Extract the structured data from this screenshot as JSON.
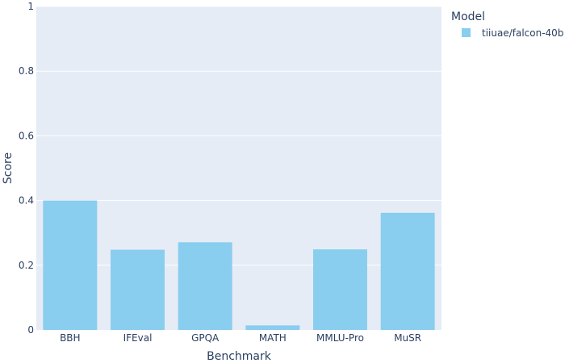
{
  "chart_data": {
    "type": "bar",
    "categories": [
      "BBH",
      "IFEval",
      "GPQA",
      "MATH",
      "MMLU-Pro",
      "MuSR"
    ],
    "series": [
      {
        "name": "tiiuae/falcon-40b",
        "values": [
          0.4,
          0.248,
          0.271,
          0.014,
          0.249,
          0.362
        ]
      }
    ],
    "xlabel": "Benchmark",
    "ylabel": "Score",
    "ylim": [
      0,
      1
    ],
    "yticks": [
      0,
      0.2,
      0.4,
      0.6,
      0.8,
      1
    ],
    "ytick_labels": [
      "0",
      "0.2",
      "0.4",
      "0.6",
      "0.8",
      "1"
    ],
    "grid": true,
    "legend": {
      "title": "Model",
      "placement": "top-right"
    },
    "colors": {
      "bar": "#89cdef",
      "plot_bg": "#e5ecf6",
      "grid": "#ffffff",
      "text": "#2a3f5f"
    }
  }
}
